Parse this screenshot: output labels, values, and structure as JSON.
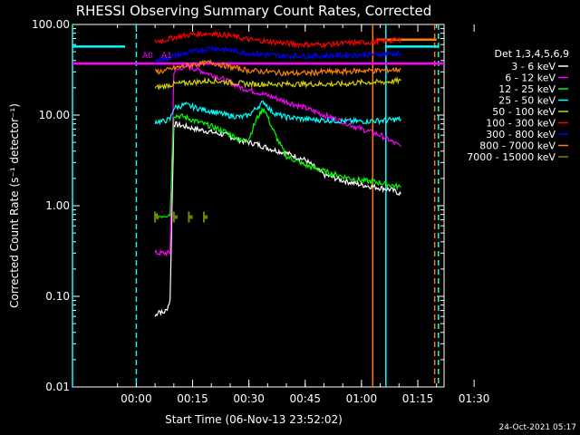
{
  "chart_data": {
    "type": "line",
    "title": "RHESSI Observing Summary Count Rates, Corrected",
    "xlabel": "Start Time (06-Nov-13 23:52:02)",
    "ylabel": "Corrected Count Rate (s⁻¹ detector⁻¹)",
    "yscale": "log",
    "ylim": [
      0.01,
      100
    ],
    "xlim_minutes": [
      -9,
      90
    ],
    "x_tick_labels": [
      "00:00",
      "00:15",
      "00:30",
      "00:45",
      "01:00",
      "01:15",
      "01:30"
    ],
    "y_tick_labels": [
      "0.01",
      "0.10",
      "1.00",
      "10.00",
      "100.00"
    ],
    "legend_title": "Det 1,3,4,5,6,9",
    "annotations": [
      "A0",
      "A1"
    ],
    "timestamp": "24-Oct-2021 05:17",
    "series": [
      {
        "name": "3 - 6 keV",
        "color": "#ffffff",
        "x": [
          5,
          6,
          7,
          8,
          9,
          10,
          13,
          16,
          20,
          24,
          28,
          32,
          36,
          40,
          45,
          50,
          55,
          60,
          68,
          70.5
        ],
        "y": [
          0.06,
          0.07,
          0.065,
          0.07,
          0.09,
          8.0,
          7.5,
          7.0,
          6.5,
          6.0,
          5.2,
          4.8,
          4.2,
          3.8,
          3.2,
          2.2,
          1.9,
          1.7,
          1.5,
          1.35
        ]
      },
      {
        "name": "6 - 12 keV",
        "color": "#ff00ff",
        "x": [
          5,
          7,
          9,
          10,
          13,
          16,
          20,
          24,
          28,
          32,
          36,
          40,
          45,
          50,
          55,
          60,
          65,
          70.5
        ],
        "y": [
          0.3,
          0.3,
          0.3,
          30,
          35,
          32,
          28,
          24,
          20,
          18,
          16,
          14,
          12,
          10,
          8.5,
          7.0,
          6.0,
          4.5
        ]
      },
      {
        "name": "12 - 25 keV",
        "color": "#00ff00",
        "x": [
          5,
          7,
          9,
          10,
          13,
          16,
          20,
          24,
          28,
          30,
          32,
          34,
          36,
          38,
          40,
          45,
          50,
          55,
          60,
          65,
          70.5
        ],
        "y": [
          0.75,
          0.78,
          0.8,
          10,
          9.5,
          8.5,
          7.5,
          6.5,
          5.2,
          5.5,
          9.0,
          12.0,
          7.5,
          5.0,
          3.5,
          2.8,
          2.4,
          2.1,
          1.9,
          1.8,
          1.6
        ]
      },
      {
        "name": "25 - 50 keV",
        "color": "#00ffff",
        "x": [
          5,
          7,
          9,
          10,
          13,
          16,
          20,
          24,
          28,
          30,
          32,
          34,
          36,
          38,
          40,
          45,
          50,
          55,
          60,
          65,
          70.5
        ],
        "y": [
          8.5,
          8.5,
          9.0,
          12,
          13,
          12,
          11,
          10,
          9.5,
          10,
          12,
          14,
          11,
          10,
          9.5,
          9.0,
          8.8,
          8.6,
          8.5,
          8.7,
          9.0
        ]
      },
      {
        "name": "50 - 100 keV",
        "color": "#d0d000",
        "x": [
          5,
          8,
          10,
          15,
          20,
          25,
          30,
          35,
          40,
          45,
          50,
          55,
          60,
          65,
          70.5
        ],
        "y": [
          20,
          21,
          22,
          23,
          24,
          23,
          22,
          22,
          22,
          22,
          22,
          22,
          23,
          23,
          24
        ]
      },
      {
        "name": "100 - 300 keV",
        "color": "#ff0000",
        "x": [
          5,
          8,
          10,
          15,
          20,
          25,
          30,
          35,
          40,
          45,
          50,
          55,
          60,
          65,
          70.5
        ],
        "y": [
          65,
          68,
          72,
          78,
          80,
          75,
          68,
          65,
          62,
          60,
          60,
          62,
          63,
          65,
          68
        ]
      },
      {
        "name": "300 - 800 keV",
        "color": "#0000ff",
        "x": [
          5,
          8,
          10,
          15,
          20,
          25,
          30,
          35,
          40,
          45,
          50,
          55,
          60,
          65,
          70.5
        ],
        "y": [
          40,
          42,
          45,
          50,
          55,
          52,
          48,
          46,
          45,
          45,
          45,
          46,
          46,
          47,
          48
        ]
      },
      {
        "name": "800 - 7000 keV",
        "color": "#ff8000",
        "x": [
          5,
          8,
          10,
          15,
          20,
          25,
          30,
          35,
          40,
          45,
          50,
          55,
          60,
          65,
          70.5
        ],
        "y": [
          30,
          31,
          33,
          36,
          38,
          34,
          31,
          30,
          29,
          29,
          30,
          30,
          31,
          31,
          32
        ]
      },
      {
        "name": "7000 - 15000 keV",
        "color": "#808000",
        "x": [
          13,
          14,
          18,
          19,
          22,
          23,
          26,
          27
        ],
        "y": [
          0.75,
          0.75,
          0.75,
          0.75,
          0.75,
          0.75,
          0.75,
          0.75
        ]
      }
    ],
    "markers": [
      {
        "type": "vline",
        "x": -9,
        "color": "#00ffff",
        "style": "solid"
      },
      {
        "type": "vline",
        "x": 8,
        "color": "#00ffff",
        "style": "dashed"
      },
      {
        "type": "vline",
        "x": 71,
        "color": "#ff8000",
        "style": "solid"
      },
      {
        "type": "vline",
        "x": 74.5,
        "color": "#00ffff",
        "style": "solid"
      },
      {
        "type": "vline",
        "x": 87.5,
        "color": "#ff8000",
        "style": "dashed"
      },
      {
        "type": "vline",
        "x": 88.5,
        "color": "#00ffff",
        "style": "dashed"
      },
      {
        "type": "hline",
        "y": 37,
        "x0": -9,
        "x1": 90,
        "color": "#ff00ff"
      },
      {
        "type": "hline",
        "y": 57,
        "x0": -9,
        "x1": 5,
        "color": "#00ffff"
      },
      {
        "type": "hline",
        "y": 57,
        "x0": 74.5,
        "x1": 88.5,
        "color": "#00ffff"
      },
      {
        "type": "hline",
        "y": 68,
        "x0": 72,
        "x1": 88,
        "color": "#ff8000"
      }
    ]
  }
}
